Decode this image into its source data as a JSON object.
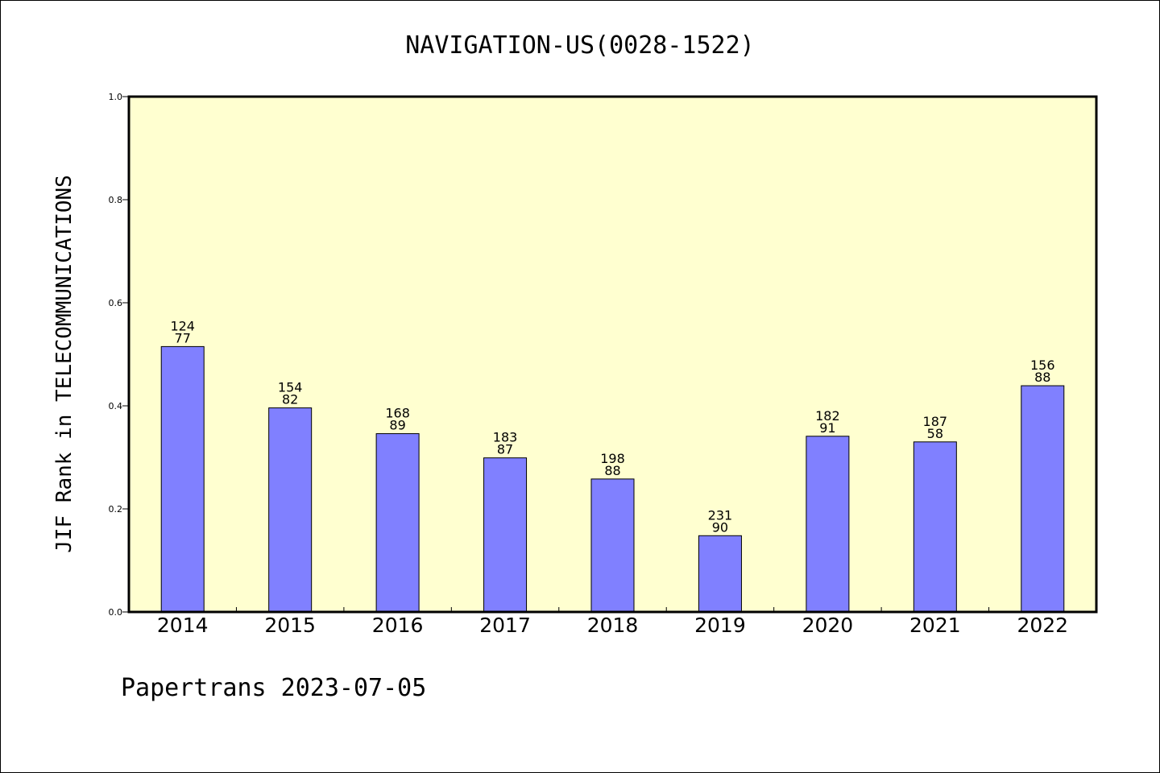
{
  "chart_data": {
    "type": "bar",
    "title": "NAVIGATION-US(0028-1522)",
    "xlabel": "",
    "ylabel": "JIF Rank in TELECOMMUNICATIONS",
    "ylim": [
      0,
      1.0
    ],
    "yticks": [
      "0.0",
      "0.2",
      "0.4",
      "0.6",
      "0.8",
      "1.0"
    ],
    "categories": [
      "2014",
      "2015",
      "2016",
      "2017",
      "2018",
      "2019",
      "2020",
      "2021",
      "2022"
    ],
    "values": [
      0.515,
      0.396,
      0.346,
      0.299,
      0.258,
      0.148,
      0.341,
      0.33,
      0.439
    ],
    "bar_labels_top": [
      "124",
      "154",
      "168",
      "183",
      "198",
      "231",
      "182",
      "187",
      "156"
    ],
    "bar_labels_bottom": [
      "77",
      "82",
      "89",
      "87",
      "88",
      "90",
      "91",
      "58",
      "88"
    ],
    "grid": false,
    "colors": {
      "bar_fill": "#8080ff",
      "plot_background": "#ffffd0",
      "axis": "#000000"
    }
  },
  "footer": "Papertrans 2023-07-05"
}
